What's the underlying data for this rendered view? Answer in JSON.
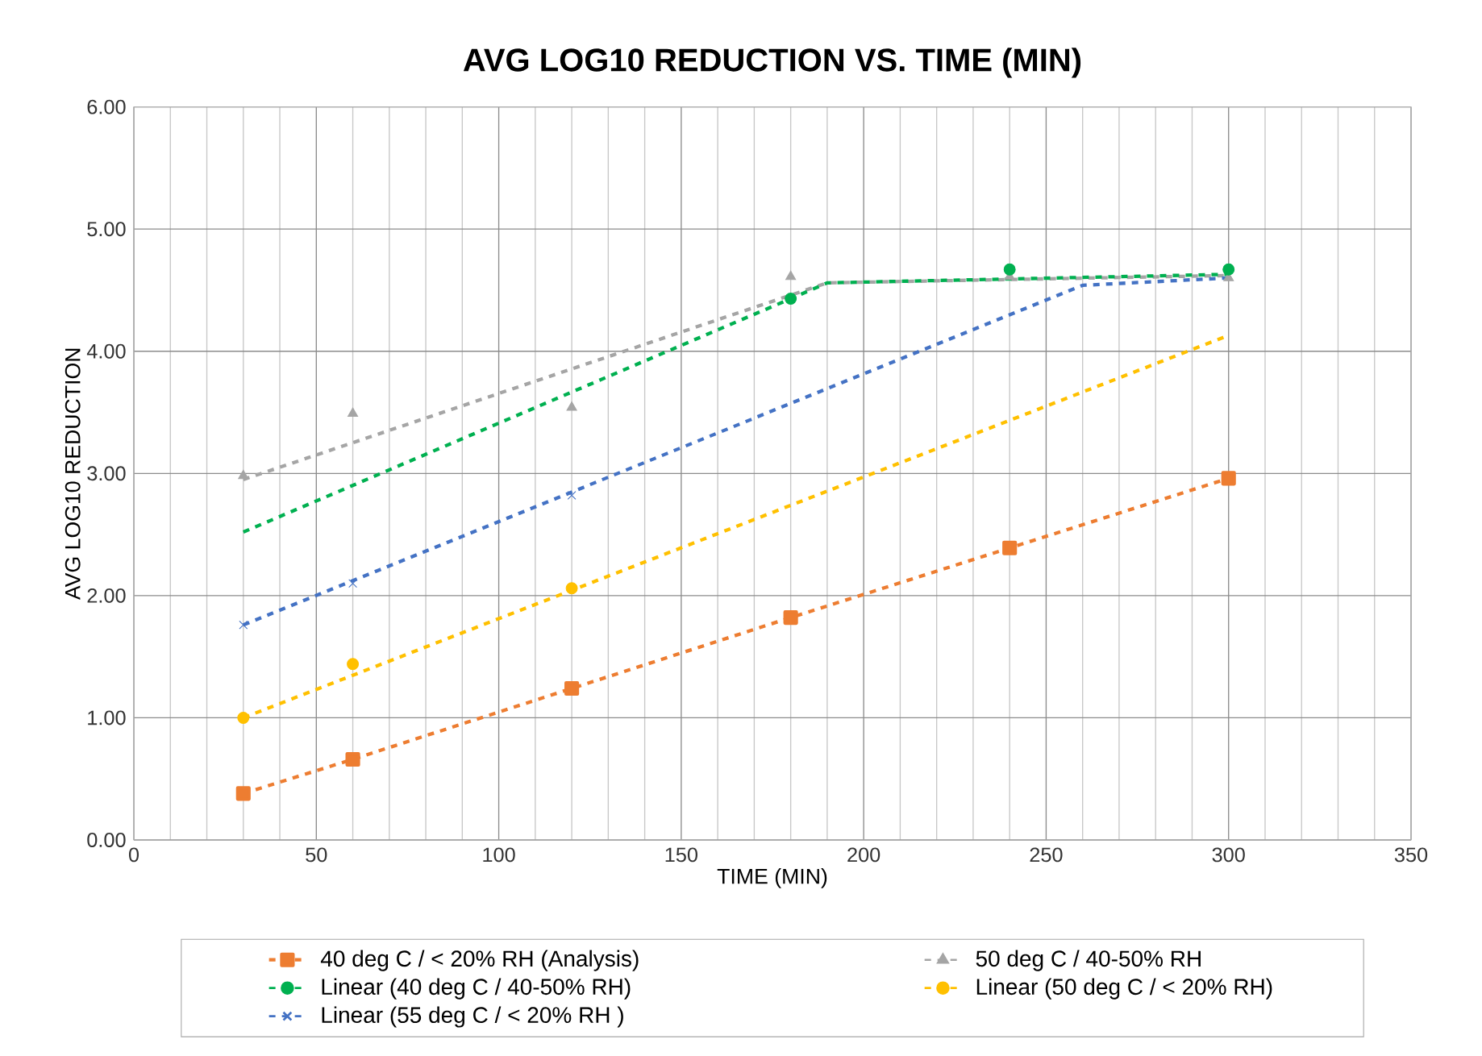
{
  "chart_data": {
    "type": "scatter",
    "title": "AVG LOG10 REDUCTION VS. TIME (MIN)",
    "xlabel": "TIME (MIN)",
    "ylabel": "AVG LOG10 REDUCTION",
    "xlim": [
      0,
      350
    ],
    "xticks": [
      0,
      50,
      100,
      150,
      200,
      250,
      300,
      350
    ],
    "ylim": [
      0,
      6
    ],
    "yticks": [
      {
        "value": 0,
        "label": "0.00"
      },
      {
        "value": 1,
        "label": "1.00"
      },
      {
        "value": 2,
        "label": "2.00"
      },
      {
        "value": 3,
        "label": "3.00"
      },
      {
        "value": 4,
        "label": "4.00"
      },
      {
        "value": 5,
        "label": "5.00"
      },
      {
        "value": 6,
        "label": "6.00"
      }
    ],
    "grid": true,
    "legend": "bottom",
    "series": [
      {
        "name": "40 deg C / < 20% RH (Analysis)",
        "type": "line",
        "color": "#ed7d31",
        "marker": "square",
        "line_style": "dashed",
        "x": [
          30,
          60,
          120,
          180,
          240,
          300
        ],
        "values": [
          0.38,
          0.66,
          1.24,
          1.82,
          2.39,
          2.96
        ]
      },
      {
        "name": "50 deg C / 40-50% RH",
        "color": "#a5a5a5",
        "marker": "triangle",
        "line_style": "dashed",
        "x": [
          30,
          60,
          120,
          180,
          240,
          300
        ],
        "values": [
          2.98,
          3.49,
          3.54,
          4.61,
          4.61,
          4.6
        ]
      },
      {
        "type": "line",
        "color": "#a5a5a5",
        "line_style": "dashed",
        "x": [
          30,
          190,
          300
        ],
        "values": [
          2.95,
          4.56,
          4.62
        ]
      },
      {
        "name": "Linear (40 deg C / 40-50% RH)",
        "color": "#00b050",
        "marker": "circle",
        "line_style": "dashed",
        "x": [
          180,
          240,
          300
        ],
        "values": [
          4.43,
          4.67,
          4.67
        ]
      },
      {
        "type": "line",
        "color": "#00b050",
        "line_style": "dashed",
        "x": [
          30,
          180,
          190,
          300
        ],
        "values": [
          2.52,
          4.43,
          4.56,
          4.63
        ]
      },
      {
        "name": "Linear (50 deg C / < 20% RH)",
        "color": "#ffc000",
        "marker": "circle",
        "line_style": "dashed",
        "x": [
          30,
          60,
          120
        ],
        "values": [
          1.0,
          1.44,
          2.06
        ]
      },
      {
        "type": "line",
        "color": "#ffc000",
        "line_style": "dashed",
        "x": [
          30,
          300
        ],
        "values": [
          1.0,
          4.13
        ]
      },
      {
        "name": "Linear (55 deg C / < 20% RH )",
        "color": "#4472c4",
        "marker": "cross",
        "line_style": "dashed",
        "x": [
          30,
          60,
          120
        ],
        "values": [
          1.76,
          2.1,
          2.82
        ]
      },
      {
        "type": "line",
        "color": "#4472c4",
        "line_style": "dashed",
        "x": [
          30,
          260,
          300
        ],
        "values": [
          1.76,
          4.54,
          4.6
        ]
      }
    ]
  }
}
